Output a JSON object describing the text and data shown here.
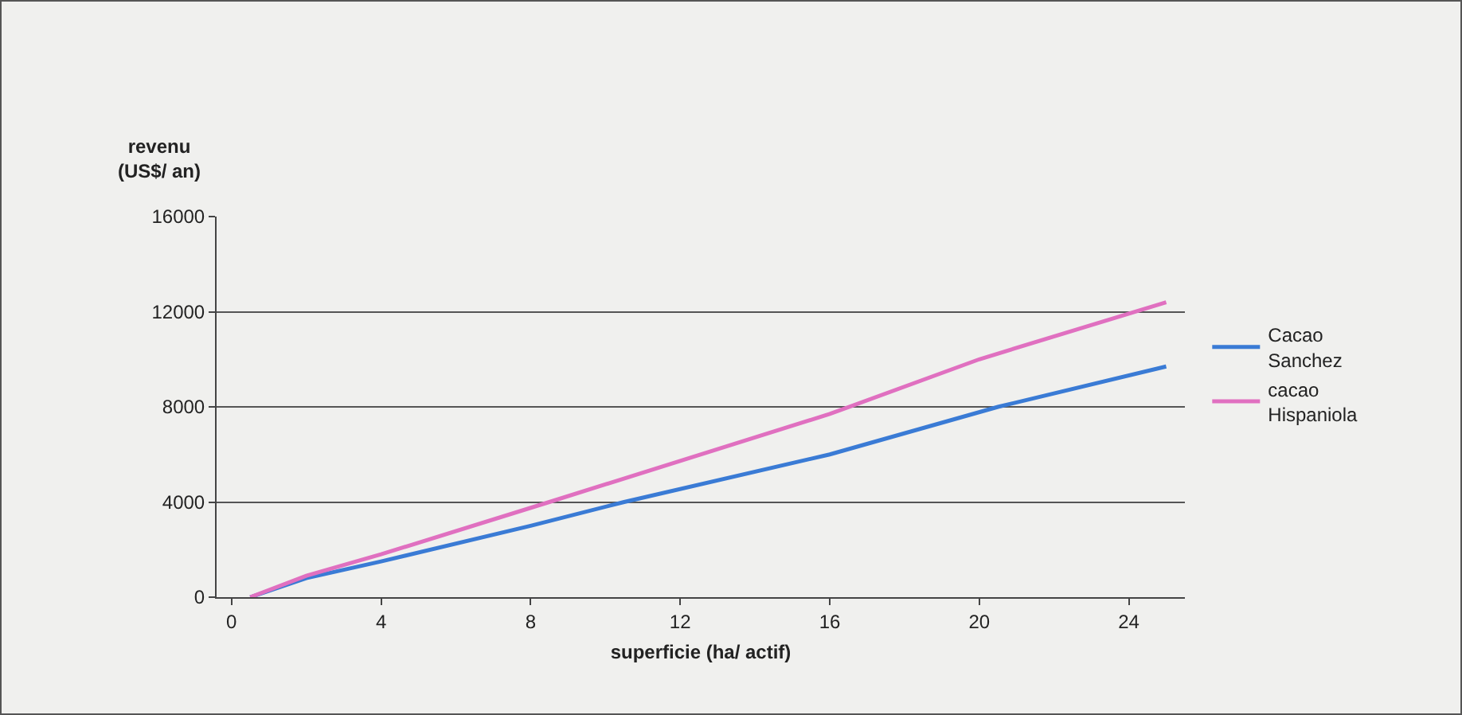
{
  "chart_data": {
    "type": "line",
    "xlabel": "superficie (ha/ actif)",
    "ylabel": "revenu\n(US$/ an)",
    "xlim": [
      -0.4,
      25.5
    ],
    "xticks": [
      0,
      4,
      8,
      12,
      16,
      20,
      24
    ],
    "ylim": [
      0,
      16000
    ],
    "yticks": [
      0,
      4000,
      8000,
      12000,
      16000
    ],
    "grid": "y",
    "legend": "right",
    "marker": "none",
    "line_style": "solid",
    "series": [
      {
        "name": "Cacao\nSanchez",
        "color": "#3a7bd5",
        "x": [
          0.5,
          2,
          4,
          8,
          10.5,
          16,
          20.5,
          25
        ],
        "values": [
          0,
          800,
          1500,
          3000,
          4000,
          6000,
          8000,
          9700
        ]
      },
      {
        "name": "cacao\nHispaniola",
        "color": "#e070c0",
        "x": [
          0.5,
          2,
          4,
          8.5,
          16,
          20,
          25
        ],
        "values": [
          0,
          900,
          1800,
          4000,
          7700,
          10000,
          12400
        ]
      }
    ]
  }
}
